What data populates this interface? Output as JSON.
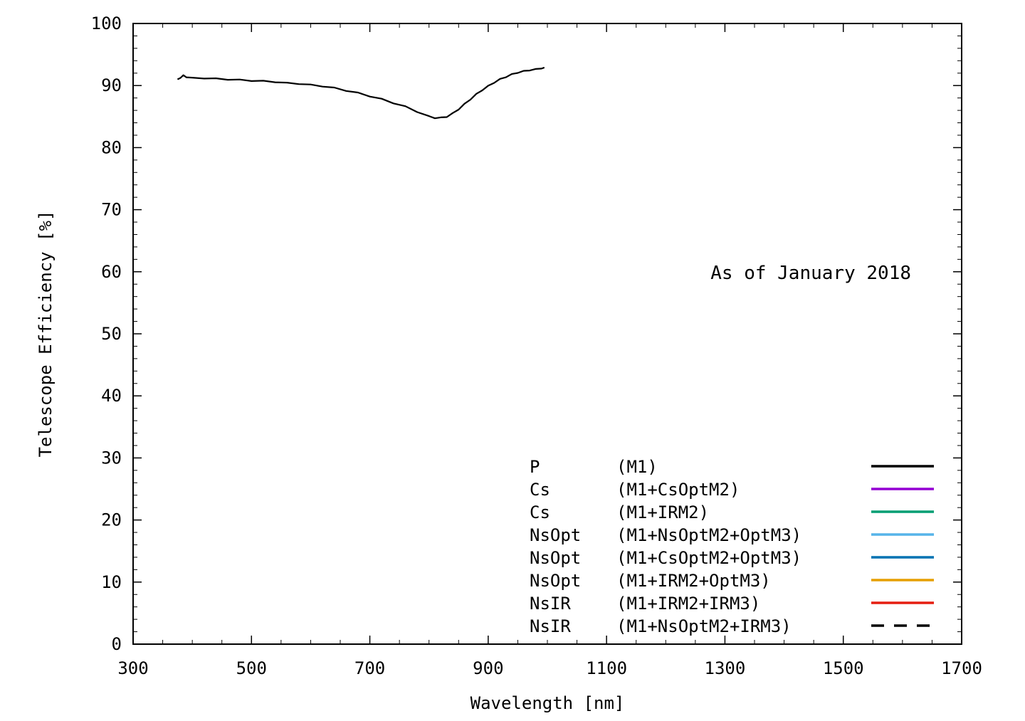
{
  "chart_data": {
    "type": "line",
    "title": "",
    "xlabel": "Wavelength [nm]",
    "ylabel": "Telescope Efficiency [%]",
    "xlim": [
      300,
      1700
    ],
    "ylim": [
      0,
      100
    ],
    "xticks": [
      300,
      500,
      700,
      900,
      1100,
      1300,
      1500,
      1700
    ],
    "yticks": [
      0,
      10,
      20,
      30,
      40,
      50,
      60,
      70,
      80,
      90,
      100
    ],
    "grid": false,
    "legend_position": "bottom-right",
    "annotation": "As of January 2018",
    "legend": [
      {
        "name": "P",
        "config": "(M1)",
        "color": "#000000",
        "dash": "solid"
      },
      {
        "name": "Cs",
        "config": "(M1+CsOptM2)",
        "color": "#9400d3",
        "dash": "solid"
      },
      {
        "name": "Cs",
        "config": "(M1+IRM2)",
        "color": "#009e73",
        "dash": "solid"
      },
      {
        "name": "NsOpt",
        "config": "(M1+NsOptM2+OptM3)",
        "color": "#56b4e9",
        "dash": "solid"
      },
      {
        "name": "NsOpt",
        "config": "(M1+CsOptM2+OptM3)",
        "color": "#0072b2",
        "dash": "solid"
      },
      {
        "name": "NsOpt",
        "config": "(M1+IRM2+OptM3)",
        "color": "#e69f00",
        "dash": "solid"
      },
      {
        "name": "NsIR",
        "config": "(M1+IRM2+IRM3)",
        "color": "#e51e10",
        "dash": "solid"
      },
      {
        "name": "NsIR",
        "config": "(M1+NsOptM2+IRM3)",
        "color": "#000000",
        "dash": "dashed"
      }
    ],
    "series": [
      {
        "name": "P",
        "color": "#000000",
        "x": [
          375,
          380,
          385,
          390,
          400,
          420,
          440,
          460,
          480,
          500,
          520,
          540,
          560,
          580,
          600,
          620,
          640,
          660,
          680,
          700,
          720,
          740,
          760,
          780,
          800,
          810,
          820,
          830,
          840,
          850,
          860,
          870,
          880,
          890,
          900,
          910,
          920,
          930,
          940,
          950,
          960,
          970,
          980,
          990,
          995
        ],
        "y": [
          91.0,
          91.3,
          91.6,
          91.4,
          91.2,
          91.2,
          91.1,
          91.0,
          90.9,
          90.8,
          90.7,
          90.6,
          90.4,
          90.3,
          90.1,
          89.9,
          89.6,
          89.2,
          88.8,
          88.3,
          87.8,
          87.2,
          86.6,
          85.8,
          85.0,
          84.8,
          84.8,
          85.0,
          85.5,
          86.2,
          87.0,
          87.8,
          88.6,
          89.3,
          89.9,
          90.5,
          91.0,
          91.4,
          91.8,
          92.1,
          92.3,
          92.5,
          92.6,
          92.8,
          92.9
        ]
      }
    ]
  }
}
